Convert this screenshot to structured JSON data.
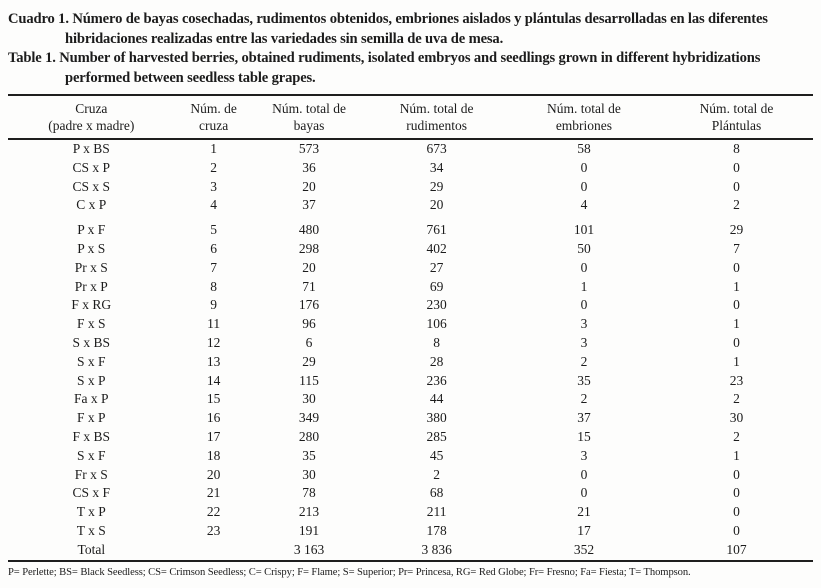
{
  "captions": {
    "spanish": "Cuadro 1. Número de bayas cosechadas, rudimentos obtenidos, embriones aislados y plántulas desarrolladas en las diferentes hibridaciones realizadas entre las variedades sin semilla de uva de mesa.",
    "english": "Table 1. Number of harvested berries, obtained rudiments, isolated embryos and seedlings grown in different hybridizations performed between seedless table grapes."
  },
  "table": {
    "headers": [
      {
        "line1": "Cruza",
        "line2": "(padre x madre)"
      },
      {
        "line1": "Núm. de",
        "line2": "cruza"
      },
      {
        "line1": "Núm. total de",
        "line2": "bayas"
      },
      {
        "line1": "Núm. total de",
        "line2": "rudimentos"
      },
      {
        "line1": "Núm. total de",
        "line2": "embriones"
      },
      {
        "line1": "Núm. total de",
        "line2": "Plántulas"
      }
    ],
    "rows": [
      [
        "P x BS",
        "1",
        "573",
        "673",
        "58",
        "8"
      ],
      [
        "CS x P",
        "2",
        "36",
        "34",
        "0",
        "0"
      ],
      [
        "CS x S",
        "3",
        "20",
        "29",
        "0",
        "0"
      ],
      [
        "C x P",
        "4",
        "37",
        "20",
        "4",
        "2"
      ],
      [
        "P x F",
        "5",
        "480",
        "761",
        "101",
        "29"
      ],
      [
        "P x S",
        "6",
        "298",
        "402",
        "50",
        "7"
      ],
      [
        "Pr x S",
        "7",
        "20",
        "27",
        "0",
        "0"
      ],
      [
        "Pr x P",
        "8",
        "71",
        "69",
        "1",
        "1"
      ],
      [
        "F x RG",
        "9",
        "176",
        "230",
        "0",
        "0"
      ],
      [
        "F x S",
        "11",
        "96",
        "106",
        "3",
        "1"
      ],
      [
        "S x BS",
        "12",
        "6",
        "8",
        "3",
        "0"
      ],
      [
        "S x F",
        "13",
        "29",
        "28",
        "2",
        "1"
      ],
      [
        "S x P",
        "14",
        "115",
        "236",
        "35",
        "23"
      ],
      [
        "Fa x P",
        "15",
        "30",
        "44",
        "2",
        "2"
      ],
      [
        "F x P",
        "16",
        "349",
        "380",
        "37",
        "30"
      ],
      [
        "F x BS",
        "17",
        "280",
        "285",
        "15",
        "2"
      ],
      [
        "S x F",
        "18",
        "35",
        "45",
        "3",
        "1"
      ],
      [
        "Fr x S",
        "20",
        "30",
        "2",
        "0",
        "0"
      ],
      [
        "CS x F",
        "21",
        "78",
        "68",
        "0",
        "0"
      ],
      [
        "T x P",
        "22",
        "213",
        "211",
        "21",
        "0"
      ],
      [
        "T x S",
        "23",
        "191",
        "178",
        "17",
        "0"
      ]
    ],
    "total": [
      "Total",
      "",
      "3 163",
      "3 836",
      "352",
      "107"
    ]
  },
  "footnote": "P= Perlette; BS= Black Seedless; CS= Crimson Seedless; C= Crispy; F= Flame; S= Superior; Pr= Princesa, RG= Red Globe; Fr= Fresno; Fa= Fiesta; T= Thompson."
}
